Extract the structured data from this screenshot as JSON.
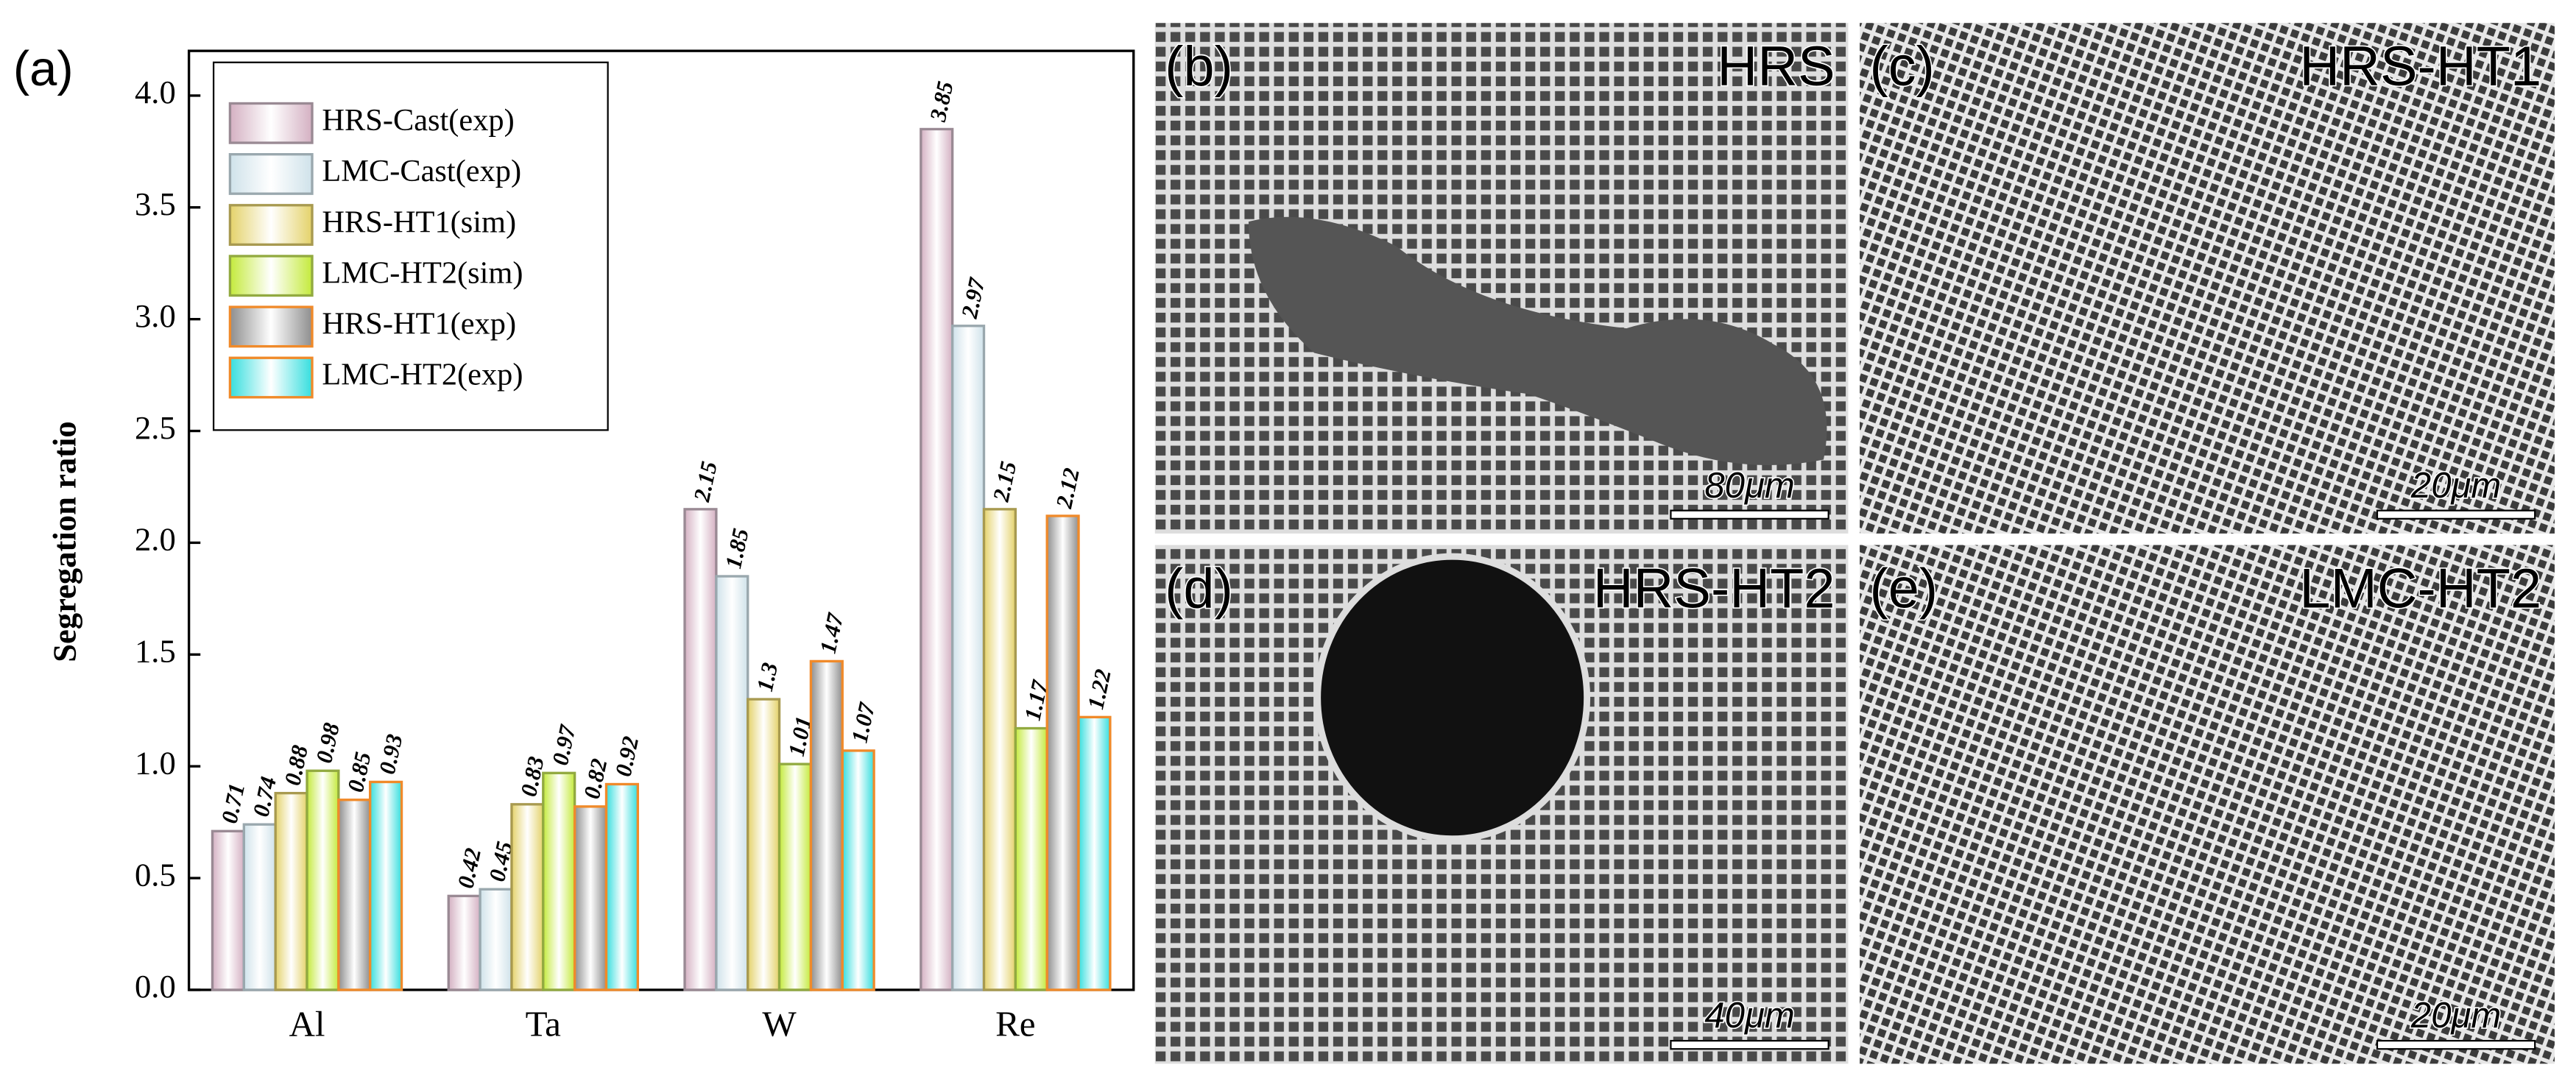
{
  "chart_data": {
    "type": "bar",
    "panel_label": "(a)",
    "ylabel": "Segregation ratio",
    "categories": [
      "Al",
      "Ta",
      "W",
      "Re"
    ],
    "series": [
      {
        "name": "HRS-Cast(exp)",
        "color": "#d4b0c2",
        "edgecolor": "#9a8a94",
        "values": [
          0.71,
          0.42,
          2.15,
          3.85
        ]
      },
      {
        "name": "LMC-Cast(exp)",
        "color": "#cfe2ea",
        "edgecolor": "#9aa8ae",
        "values": [
          0.74,
          0.45,
          1.85,
          2.97
        ]
      },
      {
        "name": "HRS-HT1(sim)",
        "color": "#e4d26a",
        "edgecolor": "#a89a50",
        "values": [
          0.88,
          0.83,
          1.3,
          2.15
        ]
      },
      {
        "name": "LMC-HT2(sim)",
        "color": "#c4ea3c",
        "edgecolor": "#92aa40",
        "values": [
          0.98,
          0.97,
          1.01,
          1.17
        ]
      },
      {
        "name": "HRS-HT1(exp)",
        "color": "#8e8e8e",
        "edgecolor": "#f08a2a",
        "values": [
          0.85,
          0.82,
          1.47,
          2.12
        ]
      },
      {
        "name": "LMC-HT2(exp)",
        "color": "#36dede",
        "edgecolor": "#f08a2a",
        "values": [
          0.93,
          0.92,
          1.07,
          1.22
        ]
      }
    ],
    "ylim": [
      0,
      4.2
    ],
    "yticks": [
      {
        "value": 0,
        "label": "0.0"
      },
      0.5,
      {
        "value": 1,
        "label": "1.0"
      },
      1.5,
      {
        "value": 2,
        "label": "2.0"
      },
      2.5,
      {
        "value": 3,
        "label": "3.0"
      },
      3.5,
      {
        "value": 4,
        "label": "4.0"
      }
    ],
    "legend": "upper-left"
  },
  "micrographs": [
    {
      "label": "(b)",
      "title": "HRS",
      "scale": "80μm"
    },
    {
      "label": "(c)",
      "title": "HRS-HT1",
      "scale": "20μm"
    },
    {
      "label": "(d)",
      "title": "HRS-HT2",
      "scale": "40μm"
    },
    {
      "label": "(e)",
      "title": "LMC-HT2",
      "scale": "20μm"
    }
  ]
}
